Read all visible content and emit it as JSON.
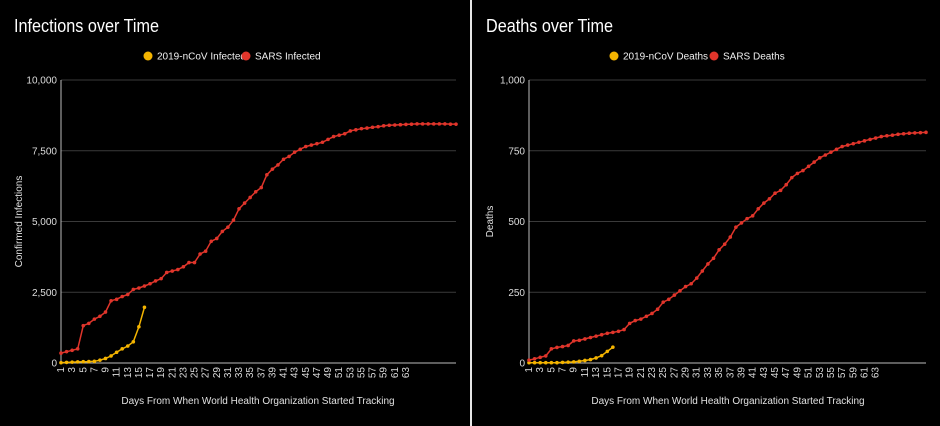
{
  "chart_data": [
    {
      "type": "line",
      "title": "Infections over Time",
      "xlabel": "Days From When World Health Organization Started Tracking",
      "ylabel": "Confirmed Infections",
      "ylim": [
        0,
        10000
      ],
      "yticks": [
        "0",
        "2,500",
        "5,000",
        "7,500",
        "10,000"
      ],
      "xticks": [
        "1",
        "3",
        "5",
        "7",
        "9",
        "11",
        "13",
        "15",
        "17",
        "19",
        "21",
        "23",
        "25",
        "27",
        "29",
        "31",
        "33",
        "35",
        "37",
        "39",
        "41",
        "43",
        "45",
        "47",
        "49",
        "51",
        "53",
        "55",
        "57",
        "59",
        "61",
        "63"
      ],
      "xlim": [
        1,
        72
      ],
      "grid": true,
      "legend_position": "top",
      "series": [
        {
          "name": "2019-nCoV Infected",
          "color": "#f4b400",
          "x": [
            1,
            2,
            3,
            4,
            5,
            6,
            7,
            8,
            9,
            10,
            11,
            12,
            13,
            14,
            15,
            16
          ],
          "y": [
            10,
            20,
            30,
            40,
            45,
            50,
            60,
            100,
            160,
            250,
            380,
            500,
            600,
            750,
            1280,
            1970
          ]
        },
        {
          "name": "SARS Infected",
          "color": "#e0352b",
          "x": [
            1,
            2,
            3,
            4,
            5,
            6,
            7,
            8,
            9,
            10,
            11,
            12,
            13,
            14,
            15,
            16,
            17,
            18,
            19,
            20,
            21,
            22,
            23,
            24,
            25,
            26,
            27,
            28,
            29,
            30,
            31,
            32,
            33,
            34,
            35,
            36,
            37,
            38,
            39,
            40,
            41,
            42,
            43,
            44,
            45,
            46,
            47,
            48,
            49,
            50,
            51,
            52,
            53,
            54,
            55,
            56,
            57,
            58,
            59,
            60,
            61,
            62,
            63,
            64,
            65,
            66,
            67,
            68,
            69,
            70,
            71,
            72
          ],
          "y": [
            350,
            400,
            450,
            500,
            1320,
            1400,
            1550,
            1650,
            1800,
            2200,
            2250,
            2350,
            2420,
            2600,
            2650,
            2720,
            2800,
            2900,
            2980,
            3200,
            3250,
            3300,
            3400,
            3550,
            3550,
            3850,
            3950,
            4300,
            4400,
            4650,
            4800,
            5050,
            5450,
            5650,
            5850,
            6050,
            6200,
            6650,
            6850,
            7000,
            7200,
            7300,
            7450,
            7550,
            7650,
            7700,
            7750,
            7800,
            7900,
            8000,
            8050,
            8100,
            8200,
            8240,
            8280,
            8300,
            8330,
            8350,
            8380,
            8400,
            8410,
            8420,
            8430,
            8440,
            8450,
            8450,
            8450,
            8450,
            8450,
            8450,
            8440,
            8440
          ]
        }
      ]
    },
    {
      "type": "line",
      "title": "Deaths over Time",
      "xlabel": "Days From When World Health Organization Started Tracking",
      "ylabel": "Deaths",
      "ylim": [
        0,
        1000
      ],
      "yticks": [
        "0",
        "250",
        "500",
        "750",
        "1,000"
      ],
      "xticks": [
        "1",
        "3",
        "5",
        "7",
        "9",
        "11",
        "13",
        "15",
        "17",
        "19",
        "21",
        "23",
        "25",
        "27",
        "29",
        "31",
        "33",
        "35",
        "37",
        "39",
        "41",
        "43",
        "45",
        "47",
        "49",
        "51",
        "53",
        "55",
        "57",
        "59",
        "61",
        "63"
      ],
      "xlim": [
        1,
        72
      ],
      "grid": true,
      "legend_position": "top",
      "series": [
        {
          "name": "2019-nCoV Deaths",
          "color": "#f4b400",
          "x": [
            1,
            2,
            3,
            4,
            5,
            6,
            7,
            8,
            9,
            10,
            11,
            12,
            13,
            14,
            15,
            16
          ],
          "y": [
            1,
            1,
            1,
            1,
            1,
            1,
            2,
            3,
            4,
            6,
            9,
            12,
            18,
            26,
            41,
            56
          ]
        },
        {
          "name": "SARS Deaths",
          "color": "#e0352b",
          "x": [
            1,
            2,
            3,
            4,
            5,
            6,
            7,
            8,
            9,
            10,
            11,
            12,
            13,
            14,
            15,
            16,
            17,
            18,
            19,
            20,
            21,
            22,
            23,
            24,
            25,
            26,
            27,
            28,
            29,
            30,
            31,
            32,
            33,
            34,
            35,
            36,
            37,
            38,
            39,
            40,
            41,
            42,
            43,
            44,
            45,
            46,
            47,
            48,
            49,
            50,
            51,
            52,
            53,
            54,
            55,
            56,
            57,
            58,
            59,
            60,
            61,
            62,
            63,
            64,
            65,
            66,
            67,
            68,
            69,
            70,
            71,
            72
          ],
          "y": [
            10,
            15,
            20,
            25,
            50,
            55,
            58,
            62,
            78,
            80,
            85,
            90,
            95,
            100,
            105,
            108,
            112,
            118,
            140,
            150,
            155,
            165,
            175,
            190,
            215,
            225,
            240,
            255,
            270,
            280,
            300,
            325,
            350,
            370,
            400,
            420,
            445,
            480,
            495,
            510,
            520,
            545,
            565,
            580,
            600,
            610,
            630,
            655,
            670,
            680,
            695,
            710,
            725,
            735,
            745,
            755,
            765,
            770,
            775,
            780,
            785,
            790,
            795,
            800,
            803,
            805,
            808,
            810,
            812,
            813,
            814,
            815
          ]
        }
      ]
    }
  ]
}
